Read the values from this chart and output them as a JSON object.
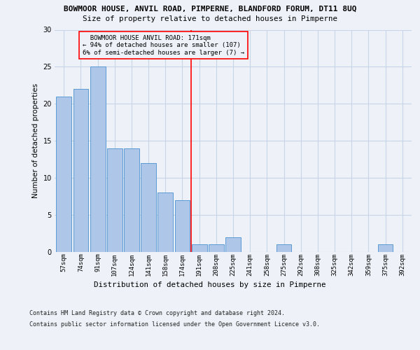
{
  "title": "BOWMOOR HOUSE, ANVIL ROAD, PIMPERNE, BLANDFORD FORUM, DT11 8UQ",
  "subtitle": "Size of property relative to detached houses in Pimperne",
  "xlabel_bottom": "Distribution of detached houses by size in Pimperne",
  "ylabel": "Number of detached properties",
  "categories": [
    "57sqm",
    "74sqm",
    "91sqm",
    "107sqm",
    "124sqm",
    "141sqm",
    "158sqm",
    "174sqm",
    "191sqm",
    "208sqm",
    "225sqm",
    "241sqm",
    "258sqm",
    "275sqm",
    "292sqm",
    "308sqm",
    "325sqm",
    "342sqm",
    "359sqm",
    "375sqm",
    "392sqm"
  ],
  "values": [
    21,
    22,
    25,
    14,
    14,
    12,
    8,
    7,
    1,
    1,
    2,
    0,
    0,
    1,
    0,
    0,
    0,
    0,
    0,
    1,
    0
  ],
  "bar_color": "#aec6e8",
  "bar_edge_color": "#5b9bd5",
  "grid_color": "#c8d4e8",
  "bg_color": "#eef2f8",
  "annotation_text": "  BOWMOOR HOUSE ANVIL ROAD: 171sqm\n← 94% of detached houses are smaller (107)\n6% of semi-detached houses are larger (7) →",
  "vline_color": "red",
  "annotation_box_color": "red",
  "ylim": [
    0,
    30
  ],
  "yticks": [
    0,
    5,
    10,
    15,
    20,
    25,
    30
  ],
  "footer_line1": "Contains HM Land Registry data © Crown copyright and database right 2024.",
  "footer_line2": "Contains public sector information licensed under the Open Government Licence v3.0."
}
